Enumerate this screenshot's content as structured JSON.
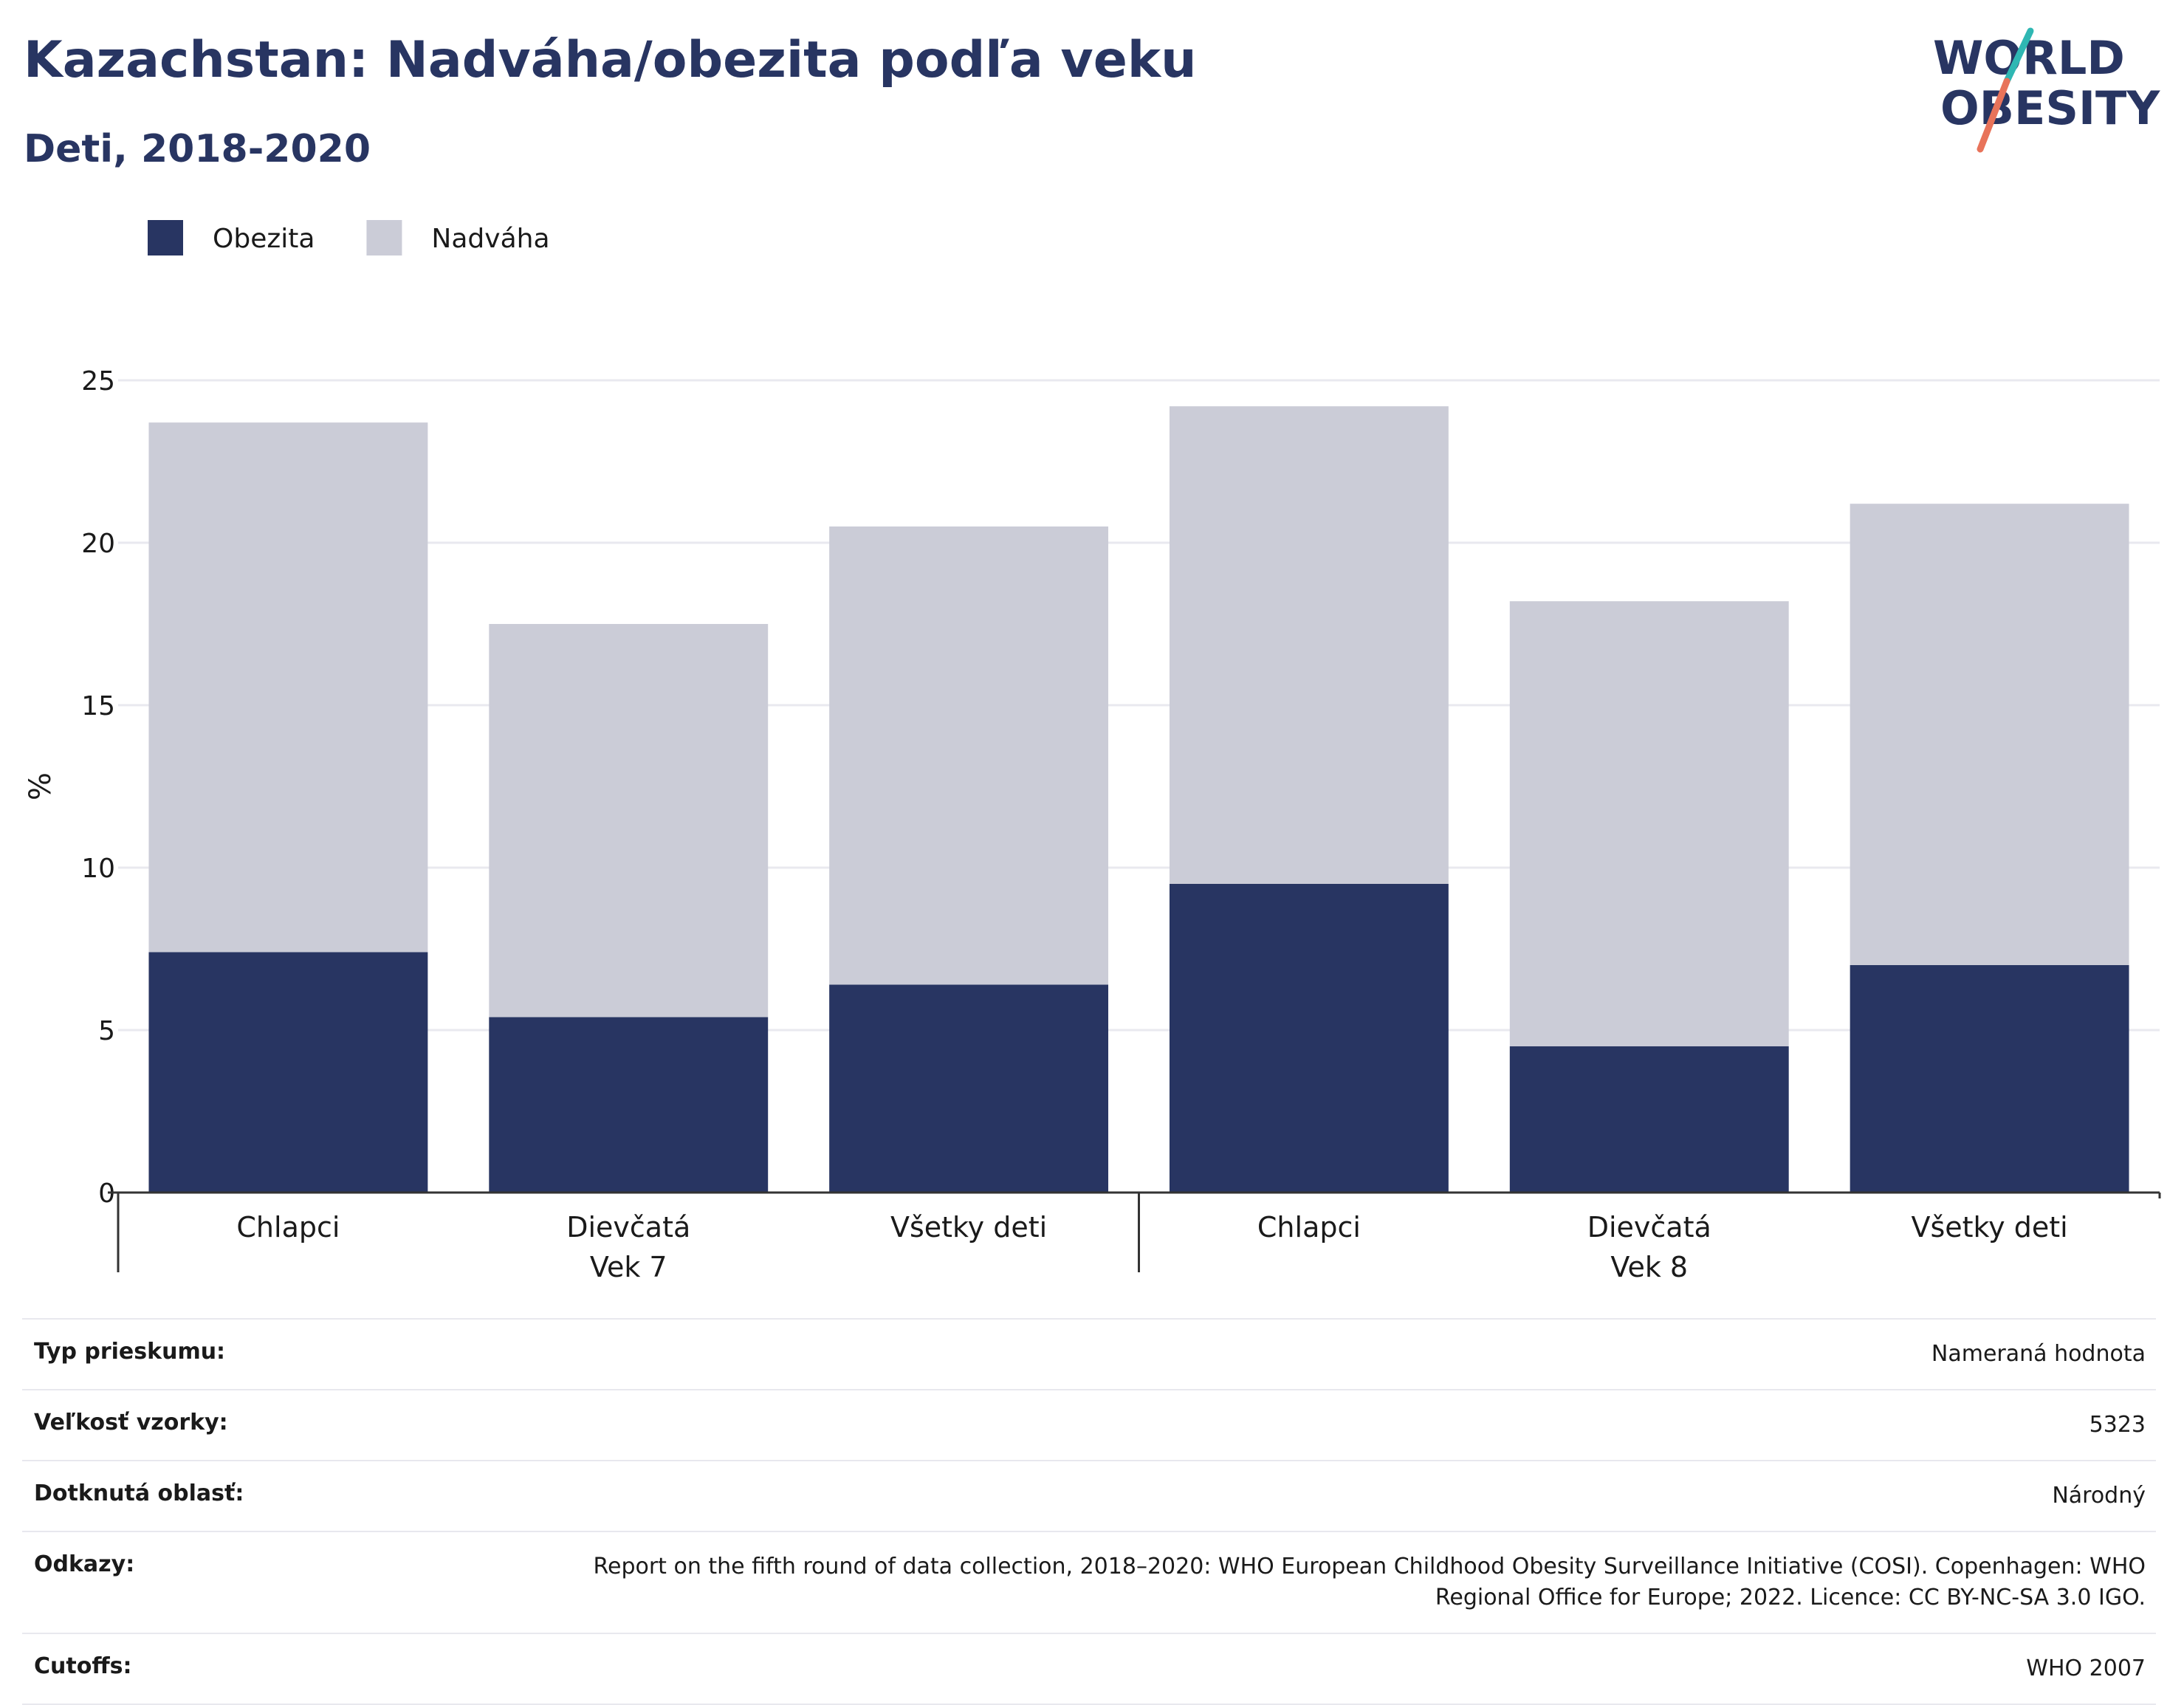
{
  "header": {
    "title": "Kazachstan: Nadváha/obezita podľa veku",
    "subtitle": "Deti, 2018-2020"
  },
  "logo": {
    "line1": "WORLD",
    "line2": "OBESITY",
    "accent_teal": "#2fb7b3",
    "accent_orange": "#e8735a"
  },
  "colors": {
    "obezita": "#283562",
    "nadvaha": "#cbccd7",
    "grid": "#e9e9ef",
    "axis": "#333333"
  },
  "chart_data": {
    "type": "bar",
    "stacked": true,
    "ylabel": "%",
    "ylim": [
      0,
      25
    ],
    "yticks": [
      0,
      5,
      10,
      15,
      20,
      25
    ],
    "grid": true,
    "legend_position": "top-left",
    "categories": [
      "Chlapci",
      "Dievčatá",
      "Všetky deti",
      "Chlapci",
      "Dievčatá",
      "Všetky deti"
    ],
    "groups": [
      {
        "label": "Vek 7",
        "count": 3
      },
      {
        "label": "Vek 8",
        "count": 3
      }
    ],
    "series": [
      {
        "name": "Obezita",
        "values": [
          7.4,
          5.4,
          6.4,
          9.5,
          4.5,
          7.0
        ]
      },
      {
        "name": "Nadváha",
        "values": [
          16.3,
          12.1,
          14.1,
          14.7,
          13.7,
          14.2
        ]
      }
    ]
  },
  "meta": [
    {
      "label": "Typ prieskumu:",
      "value": "Nameraná hodnota"
    },
    {
      "label": "Veľkosť vzorky:",
      "value": "5323"
    },
    {
      "label": "Dotknutá oblasť:",
      "value": "Národný"
    },
    {
      "label": "Odkazy:",
      "value": "Report on the fifth round of data collection, 2018–2020: WHO European Childhood Obesity Surveillance Initiative (COSI). Copenhagen: WHO Regional Office for Europe; 2022. Licence: CC BY-NC-SA 3.0 IGO."
    },
    {
      "label": "Cutoffs:",
      "value": "WHO 2007"
    }
  ]
}
